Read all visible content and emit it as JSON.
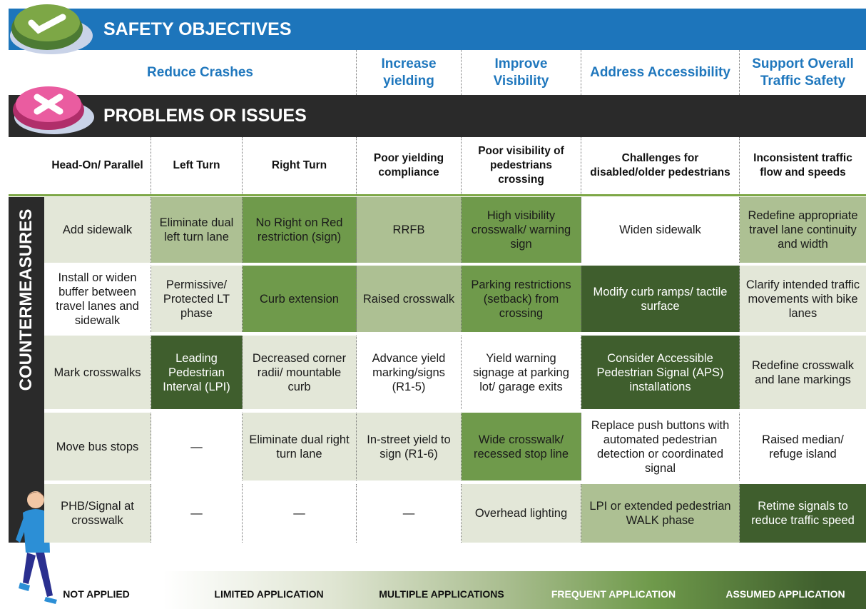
{
  "safety_header": "SAFETY OBJECTIVES",
  "objectives": [
    "Reduce Crashes",
    "Increase yielding",
    "Improve Visibility",
    "Address Accessibility",
    "Support Overall Traffic Safety"
  ],
  "problems_header": "PROBLEMS OR ISSUES",
  "problems": [
    "Head-On/ Parallel",
    "Left Turn",
    "Right Turn",
    "Poor yielding compliance",
    "Poor visibility of pedestrians crossing",
    "Challenges for disabled/older pedestrians",
    "Inconsistent traffic flow and speeds"
  ],
  "countermeasures_label": "COUNTERMEASURES",
  "rows": [
    [
      {
        "text": "Add sidewalk",
        "fill": "#e3e7d8"
      },
      {
        "text": "Eliminate dual left turn lane",
        "fill": "#adc093"
      },
      {
        "text": "No Right on Red restriction (sign)",
        "fill": "#6f9a4b"
      },
      {
        "text": "RRFB",
        "fill": "#adc093"
      },
      {
        "text": "High visibility crosswalk/ warning sign",
        "fill": "#6f9a4b"
      },
      {
        "text": "Widen sidewalk",
        "fill": "#ffffff"
      },
      {
        "text": "Redefine appropriate travel lane continuity and width",
        "fill": "#adc093"
      }
    ],
    [
      {
        "text": "Install or widen buffer between travel lanes and sidewalk",
        "fill": "#ffffff"
      },
      {
        "text": "Permissive/ Protected LT phase",
        "fill": "#e3e7d8"
      },
      {
        "text": "Curb extension",
        "fill": "#6f9a4b"
      },
      {
        "text": "Raised crosswalk",
        "fill": "#adc093"
      },
      {
        "text": "Parking restrictions (setback) from crossing",
        "fill": "#6f9a4b"
      },
      {
        "text": "Modify curb ramps/ tactile surface",
        "fill": "#3f5e2d"
      },
      {
        "text": "Clarify intended traffic movements with bike lanes",
        "fill": "#e3e7d8"
      }
    ],
    [
      {
        "text": "Mark crosswalks",
        "fill": "#e3e7d8"
      },
      {
        "text": "Leading Pedestrian Interval (LPI)",
        "fill": "#3f5e2d"
      },
      {
        "text": "Decreased corner radii/ mountable curb",
        "fill": "#e3e7d8"
      },
      {
        "text": "Advance yield marking/signs (R1-5)",
        "fill": "#ffffff"
      },
      {
        "text": "Yield warning signage at parking lot/ garage exits",
        "fill": "#ffffff"
      },
      {
        "text": "Consider Accessible Pedestrian Signal (APS) installations",
        "fill": "#3f5e2d"
      },
      {
        "text": "Redefine crosswalk and lane markings",
        "fill": "#e3e7d8"
      }
    ],
    [
      {
        "text": "Move bus stops",
        "fill": "#e3e7d8"
      },
      {
        "text": "—",
        "fill": "#ffffff"
      },
      {
        "text": "Eliminate dual right turn lane",
        "fill": "#e3e7d8"
      },
      {
        "text": "In-street yield to sign (R1-6)",
        "fill": "#e3e7d8"
      },
      {
        "text": "Wide crosswalk/ recessed stop line",
        "fill": "#6f9a4b"
      },
      {
        "text": "Replace push buttons with automated pedestrian detection or coordinated signal",
        "fill": "#ffffff"
      },
      {
        "text": "Raised median/ refuge island",
        "fill": "#ffffff"
      }
    ],
    [
      {
        "text": "PHB/Signal at crosswalk",
        "fill": "#e3e7d8"
      },
      {
        "text": "—",
        "fill": "#ffffff"
      },
      {
        "text": "—",
        "fill": "#ffffff"
      },
      {
        "text": "—",
        "fill": "#ffffff"
      },
      {
        "text": "Overhead lighting",
        "fill": "#e3e7d8"
      },
      {
        "text": "LPI or extended pedestrian WALK phase",
        "fill": "#adc093"
      },
      {
        "text": "Retime signals to reduce traffic speed",
        "fill": "#3f5e2d"
      }
    ]
  ],
  "legend": [
    "NOT APPLIED",
    "LIMITED APPLICATION",
    "MULTIPLE APPLICATIONS",
    "FREQUENT APPLICATION",
    "ASSUMED APPLICATION"
  ]
}
